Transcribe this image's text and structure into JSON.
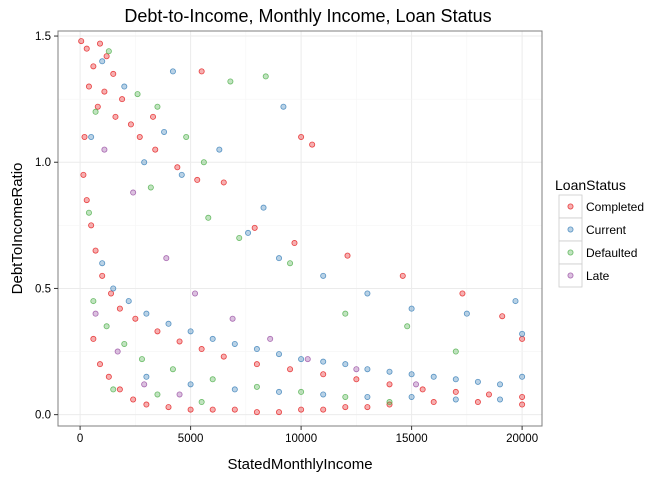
{
  "chart_data": {
    "type": "scatter",
    "title": "Debt-to-Income, Monthly Income, Loan Status",
    "xlabel": "StatedMonthlyIncome",
    "ylabel": "DebtToIncomeRatio",
    "xlim": [
      -1000,
      20900
    ],
    "ylim": [
      -0.045,
      1.52
    ],
    "x_ticks": [
      0,
      5000,
      10000,
      15000,
      20000
    ],
    "x_tick_labels": [
      "0",
      "5000",
      "10000",
      "15000",
      "20000"
    ],
    "y_ticks": [
      0.0,
      0.5,
      1.0,
      1.5
    ],
    "y_tick_labels": [
      "0.0",
      "0.5",
      "1.0",
      "1.5"
    ],
    "grid": true,
    "legend": {
      "title": "LoanStatus",
      "position": "right",
      "entries": [
        "Completed",
        "Current",
        "Defaulted",
        "Late"
      ]
    },
    "point_opacity": 0.35,
    "series": [
      {
        "name": "Completed",
        "color": "#e41a1c",
        "points": [
          [
            50,
            1.48
          ],
          [
            300,
            1.45
          ],
          [
            600,
            1.38
          ],
          [
            900,
            1.47
          ],
          [
            1200,
            1.42
          ],
          [
            1500,
            1.35
          ],
          [
            400,
            1.3
          ],
          [
            800,
            1.22
          ],
          [
            1100,
            1.28
          ],
          [
            1600,
            1.18
          ],
          [
            1900,
            1.25
          ],
          [
            2300,
            1.15
          ],
          [
            2700,
            1.1
          ],
          [
            3400,
            1.05
          ],
          [
            200,
            1.1
          ],
          [
            5500,
            1.36
          ],
          [
            3300,
            1.18
          ],
          [
            4400,
            0.98
          ],
          [
            5300,
            0.93
          ],
          [
            6500,
            0.92
          ],
          [
            10000,
            1.1
          ],
          [
            10500,
            1.07
          ],
          [
            7900,
            0.74
          ],
          [
            9700,
            0.68
          ],
          [
            12100,
            0.63
          ],
          [
            14600,
            0.55
          ],
          [
            17300,
            0.48
          ],
          [
            19100,
            0.39
          ],
          [
            20000,
            0.3
          ],
          [
            150,
            0.95
          ],
          [
            300,
            0.85
          ],
          [
            500,
            0.75
          ],
          [
            700,
            0.65
          ],
          [
            1000,
            0.55
          ],
          [
            1400,
            0.48
          ],
          [
            1800,
            0.42
          ],
          [
            2500,
            0.38
          ],
          [
            3500,
            0.33
          ],
          [
            4500,
            0.29
          ],
          [
            5500,
            0.26
          ],
          [
            6500,
            0.23
          ],
          [
            8000,
            0.2
          ],
          [
            9500,
            0.18
          ],
          [
            11000,
            0.16
          ],
          [
            12500,
            0.14
          ],
          [
            14000,
            0.12
          ],
          [
            15500,
            0.1
          ],
          [
            17000,
            0.09
          ],
          [
            18500,
            0.08
          ],
          [
            20000,
            0.07
          ],
          [
            600,
            0.3
          ],
          [
            900,
            0.2
          ],
          [
            1300,
            0.15
          ],
          [
            1800,
            0.1
          ],
          [
            2400,
            0.06
          ],
          [
            3000,
            0.04
          ],
          [
            4000,
            0.03
          ],
          [
            5000,
            0.02
          ],
          [
            6000,
            0.02
          ],
          [
            7000,
            0.02
          ],
          [
            8000,
            0.01
          ],
          [
            9000,
            0.01
          ],
          [
            10000,
            0.02
          ],
          [
            11000,
            0.02
          ],
          [
            12000,
            0.03
          ],
          [
            13000,
            0.03
          ],
          [
            14000,
            0.04
          ],
          [
            16000,
            0.05
          ],
          [
            18000,
            0.05
          ],
          [
            20000,
            0.04
          ]
        ]
      },
      {
        "name": "Current",
        "color": "#377eb8",
        "points": [
          [
            4200,
            1.36
          ],
          [
            9200,
            1.22
          ],
          [
            6300,
            1.05
          ],
          [
            8300,
            0.82
          ],
          [
            4600,
            0.95
          ],
          [
            3800,
            1.12
          ],
          [
            2900,
            1.0
          ],
          [
            2000,
            1.3
          ],
          [
            1000,
            1.4
          ],
          [
            500,
            1.1
          ],
          [
            7600,
            0.72
          ],
          [
            9000,
            0.62
          ],
          [
            11000,
            0.55
          ],
          [
            13000,
            0.48
          ],
          [
            15000,
            0.42
          ],
          [
            17500,
            0.4
          ],
          [
            19700,
            0.45
          ],
          [
            20000,
            0.32
          ],
          [
            1000,
            0.6
          ],
          [
            1500,
            0.5
          ],
          [
            2200,
            0.45
          ],
          [
            3000,
            0.4
          ],
          [
            4000,
            0.36
          ],
          [
            5000,
            0.33
          ],
          [
            6000,
            0.3
          ],
          [
            7000,
            0.28
          ],
          [
            8000,
            0.26
          ],
          [
            9000,
            0.24
          ],
          [
            10000,
            0.22
          ],
          [
            11000,
            0.21
          ],
          [
            12000,
            0.2
          ],
          [
            13000,
            0.18
          ],
          [
            14000,
            0.17
          ],
          [
            15000,
            0.16
          ],
          [
            16000,
            0.15
          ],
          [
            17000,
            0.14
          ],
          [
            18000,
            0.13
          ],
          [
            19000,
            0.12
          ],
          [
            20000,
            0.15
          ],
          [
            3000,
            0.15
          ],
          [
            5000,
            0.12
          ],
          [
            7000,
            0.1
          ],
          [
            9000,
            0.09
          ],
          [
            11000,
            0.08
          ],
          [
            13000,
            0.07
          ],
          [
            15000,
            0.07
          ],
          [
            17000,
            0.06
          ],
          [
            19000,
            0.06
          ]
        ]
      },
      {
        "name": "Defaulted",
        "color": "#4daf4a",
        "points": [
          [
            8400,
            1.34
          ],
          [
            6800,
            1.32
          ],
          [
            2600,
            1.27
          ],
          [
            3500,
            1.22
          ],
          [
            4800,
            1.1
          ],
          [
            5600,
            1.0
          ],
          [
            1300,
            1.44
          ],
          [
            700,
            1.2
          ],
          [
            3200,
            0.9
          ],
          [
            5800,
            0.78
          ],
          [
            7200,
            0.7
          ],
          [
            9500,
            0.6
          ],
          [
            12000,
            0.4
          ],
          [
            14800,
            0.35
          ],
          [
            17000,
            0.25
          ],
          [
            400,
            0.8
          ],
          [
            600,
            0.45
          ],
          [
            1200,
            0.35
          ],
          [
            2000,
            0.28
          ],
          [
            2800,
            0.22
          ],
          [
            4200,
            0.18
          ],
          [
            6000,
            0.14
          ],
          [
            8000,
            0.11
          ],
          [
            10000,
            0.09
          ],
          [
            12000,
            0.07
          ],
          [
            14000,
            0.05
          ],
          [
            1500,
            0.1
          ],
          [
            3500,
            0.08
          ],
          [
            5500,
            0.05
          ]
        ]
      },
      {
        "name": "Late",
        "color": "#984ea3",
        "points": [
          [
            1100,
            1.05
          ],
          [
            2400,
            0.88
          ],
          [
            3900,
            0.62
          ],
          [
            5200,
            0.48
          ],
          [
            6900,
            0.38
          ],
          [
            8600,
            0.3
          ],
          [
            10300,
            0.22
          ],
          [
            12500,
            0.18
          ],
          [
            15200,
            0.12
          ],
          [
            700,
            0.4
          ],
          [
            1700,
            0.25
          ],
          [
            2900,
            0.12
          ],
          [
            4500,
            0.08
          ]
        ]
      }
    ]
  }
}
